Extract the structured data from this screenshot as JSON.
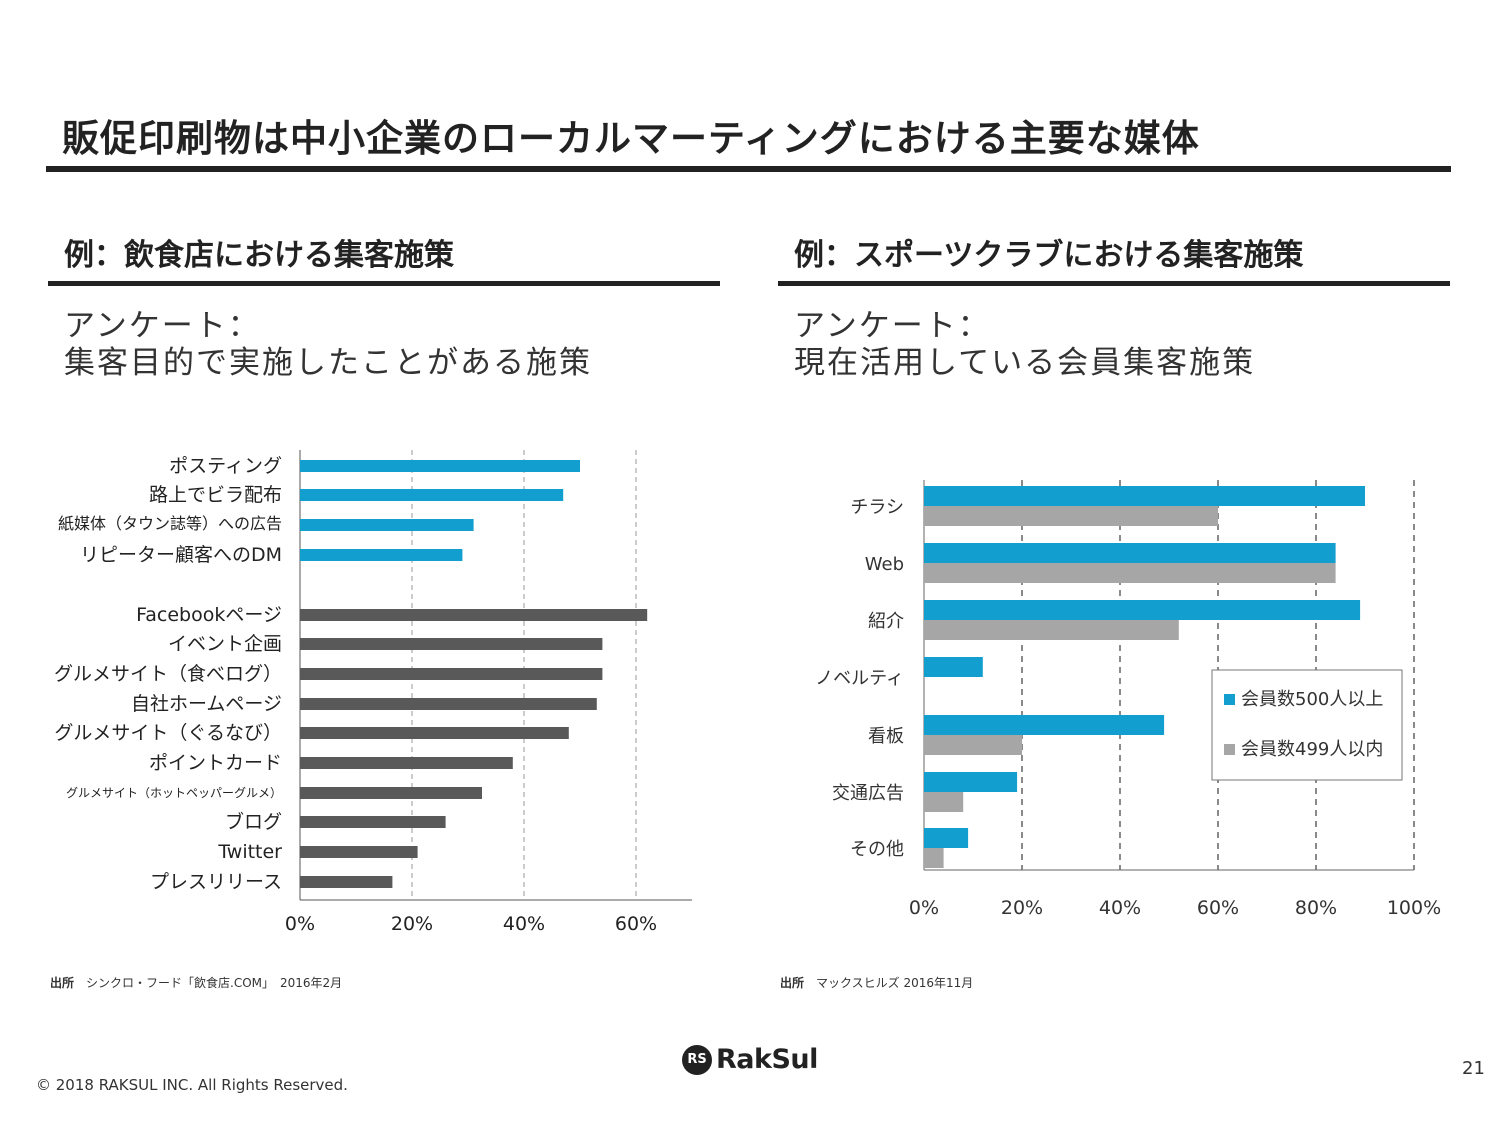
{
  "slide": {
    "title": "販促印刷物は中小企業のローカルマーティングにおける主要な媒体",
    "page_number": "21",
    "copyright": "© 2018 RAKSUL INC. All Rights Reserved.",
    "logo_text": "RakSul",
    "logo_mark": "RS"
  },
  "left": {
    "heading": "例：飲食店における集客施策",
    "survey_line1": "アンケート：",
    "survey_line2": "集客目的で実施したことがある施策",
    "source_label": "出所",
    "source_text": "シンクロ・フード「飲食店.COM」　2016年2月"
  },
  "right": {
    "heading": "例：スポーツクラブにおける集客施策",
    "survey_line1": "アンケート：",
    "survey_line2": "現在活用している会員集客施策",
    "source_label": "出所",
    "source_text": "マックスヒルズ 2016年11月"
  },
  "colors": {
    "blue": "#139ed0",
    "dark": "#595959",
    "gray": "#a6a6a6"
  },
  "chart_data": [
    {
      "type": "bar",
      "orientation": "horizontal",
      "categories": [
        "ポスティング",
        "路上でビラ配布",
        "紙媒体（タウン誌等）への広告",
        "リピーター顧客へのDM",
        "Facebookページ",
        "イベント企画",
        "グルメサイト（食べログ）",
        "自社ホームページ",
        "グルメサイト（ぐるなび）",
        "ポイントカード",
        "グルメサイト（ホットペッパーグルメ）",
        "ブログ",
        "Twitter",
        "プレスリリース"
      ],
      "values": [
        50,
        47,
        31,
        29,
        62,
        54,
        54,
        53,
        48,
        38,
        32.5,
        26,
        21,
        16.5
      ],
      "bar_colors": [
        "blue",
        "blue",
        "blue",
        "blue",
        "dark",
        "dark",
        "dark",
        "dark",
        "dark",
        "dark",
        "dark",
        "dark",
        "dark",
        "dark"
      ],
      "x_tick_labels": [
        "0%",
        "20%",
        "40%",
        "60%"
      ],
      "xlim": [
        0,
        70
      ],
      "grid": true
    },
    {
      "type": "bar",
      "orientation": "horizontal",
      "categories": [
        "チラシ",
        "Web",
        "紹介",
        "ノベルティ",
        "看板",
        "交通広告",
        "その他"
      ],
      "series": [
        {
          "name": "会員数500人以上",
          "color": "blue",
          "values": [
            90,
            84,
            89,
            12,
            49,
            19,
            9
          ]
        },
        {
          "name": "会員数499人以内",
          "color": "gray",
          "values": [
            60,
            84,
            52,
            null,
            20,
            8,
            4
          ]
        }
      ],
      "x_tick_labels": [
        "0%",
        "20%",
        "40%",
        "60%",
        "80%",
        "100%"
      ],
      "xlim": [
        0,
        100
      ],
      "grid": true,
      "legend_position": "right"
    }
  ]
}
